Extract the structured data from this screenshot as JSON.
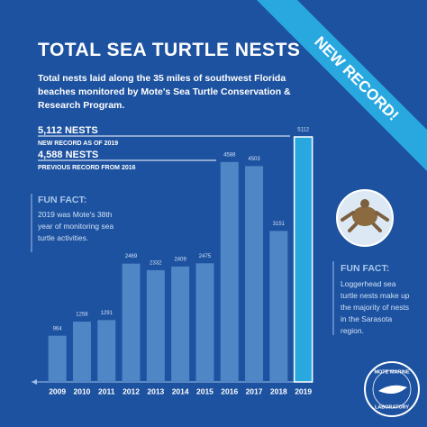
{
  "chart_data": {
    "type": "bar",
    "title": "TOTAL SEA TURTLE NESTS",
    "subtitle": "Total nests laid along the 35 miles of southwest Florida beaches monitored by Mote's Sea Turtle Conservation & Research Program.",
    "banner": "NEW RECORD!",
    "categories": [
      "2009",
      "2010",
      "2011",
      "2012",
      "2013",
      "2014",
      "2015",
      "2016",
      "2017",
      "2018",
      "2019"
    ],
    "values": [
      964,
      1258,
      1291,
      2469,
      2332,
      2409,
      2475,
      4588,
      4503,
      3151,
      5112
    ],
    "color": "#4f86c6",
    "highlight_color": "#29a8e0",
    "records": [
      {
        "label": "5,112 NESTS",
        "note": "NEW RECORD AS OF 2019"
      },
      {
        "label": "4,588 NESTS",
        "note": "PREVIOUS RECORD FROM 2016"
      }
    ],
    "facts": [
      {
        "title": "FUN FACT:",
        "text": "2019 was Mote's 38th year of monitoring sea turtle activities."
      },
      {
        "title": "FUN FACT:",
        "text": "Loggerhead sea turtle nests make up the majority of nests in the Sarasota region."
      }
    ],
    "logo": {
      "top": "MOTE MARINE",
      "bottom": "LABORATORY"
    }
  }
}
